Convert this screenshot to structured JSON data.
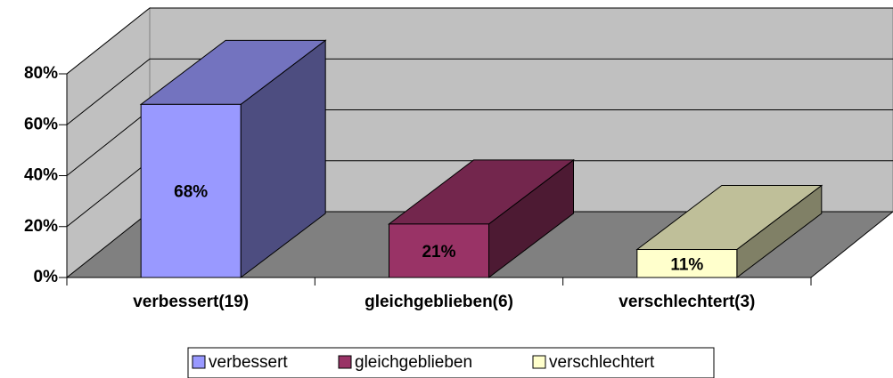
{
  "chart_data": {
    "type": "bar3d",
    "categories": [
      "verbessert(19)",
      "gleichgeblieben(6)",
      "verschlechtert(3)"
    ],
    "values": [
      68,
      21,
      11
    ],
    "value_labels": [
      "68%",
      "21%",
      "11%"
    ],
    "colors": [
      "#9999ff",
      "#993366",
      "#ffffcc"
    ],
    "legend": [
      "verbessert",
      "gleichgeblieben",
      "verschlechtert"
    ],
    "ylim": [
      0,
      80
    ],
    "yticks": [
      {
        "value": 0,
        "label": "0%"
      },
      {
        "value": 20,
        "label": "20%"
      },
      {
        "value": 40,
        "label": "40%"
      },
      {
        "value": 60,
        "label": "60%"
      },
      {
        "value": 80,
        "label": "80%"
      }
    ],
    "grid": true
  }
}
